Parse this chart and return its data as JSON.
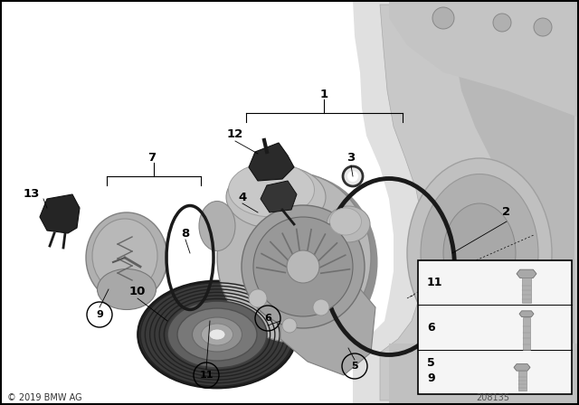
{
  "bg_color": "#ffffff",
  "copyright": "© 2019 BMW AG",
  "part_number": "208135",
  "engine_bg": "#e8e8e8",
  "engine_dark": "#c0c0c0",
  "engine_mid": "#d4d4d4",
  "pump_light": "#c8c8c8",
  "pump_mid": "#b0b0b0",
  "pump_dark": "#909090",
  "oring_color": "#303030",
  "pulley_dark": "#484848",
  "pulley_groove": "#2a2a2a",
  "sensor_dark": "#282828",
  "inset_bg": "#f8f8f8",
  "bold_labels": [
    "1",
    "2",
    "3",
    "4",
    "7",
    "8",
    "10",
    "12",
    "13"
  ],
  "circle_labels": [
    "5",
    "6",
    "9",
    "11"
  ]
}
